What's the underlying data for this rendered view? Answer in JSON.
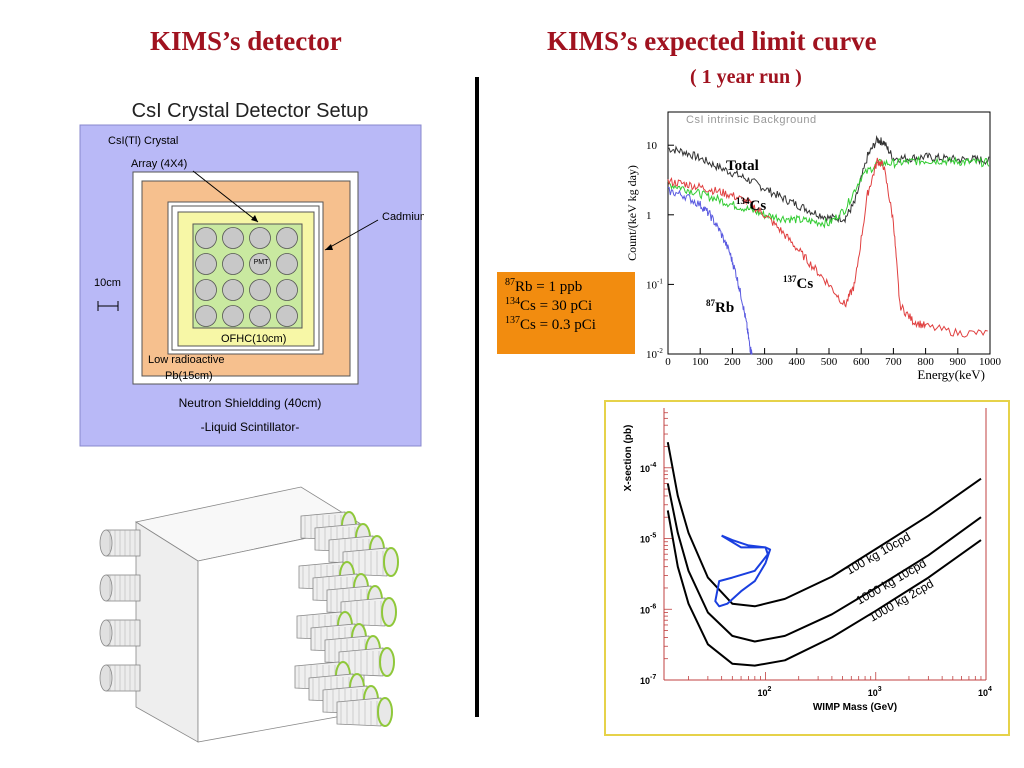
{
  "titles": {
    "left": "KIMS’s detector",
    "right": "KIMS’s expected limit curve",
    "right_sub": "( 1 year run )"
  },
  "setup": {
    "heading": "CsI Crystal Detector Setup",
    "crystal_label": "CsI(Tl) Crystal",
    "array_label": "Array (4X4)",
    "cadmium_label": "Cadmium",
    "scale_label": "10cm",
    "pmt_label": "PMT",
    "ofhc_label": "OFHC(10cm)",
    "pb_label_1": "Low radioactive",
    "pb_label_2": "Pb(15cm)",
    "neutron_label": "Neutron Shieldding (40cm)",
    "scint_label": "-Liquid Scintillator-",
    "colors": {
      "outer": "#b9b9f7",
      "pb": "#f6c08e",
      "ofhc": "#f7f7a6",
      "crystal": "#c9e9a0",
      "cell": "#c8c8c8"
    }
  },
  "isotopes": {
    "rb": {
      "mass": "87",
      "text": "Rb = 1 ppb"
    },
    "cs134": {
      "mass": "134",
      "text": "Cs = 30 pCi"
    },
    "cs137": {
      "mass": "137",
      "text": "Cs = 0.3 pCi"
    },
    "box_color": "#f28c0f"
  },
  "chart_data": [
    {
      "type": "line",
      "title": "CsI intrinsic Background",
      "xlabel": "Energy(keV)",
      "ylabel": "Count/(keV kg day)",
      "xlim": [
        0,
        1000
      ],
      "ylim": [
        0.01,
        30
      ],
      "yscale": "log",
      "x_ticks": [
        "0",
        "100",
        "200",
        "300",
        "400",
        "500",
        "600",
        "700",
        "800",
        "900",
        "1000"
      ],
      "y_ticks": [
        {
          "base": "10",
          "exp": ""
        },
        {
          "base": "1",
          "exp": ""
        },
        {
          "base": "10",
          "exp": "-1"
        },
        {
          "base": "10",
          "exp": "-2"
        }
      ],
      "annotations": [
        {
          "mass": "",
          "text": "Total"
        },
        {
          "mass": "134",
          "text": "Cs"
        },
        {
          "mass": "137",
          "text": "Cs"
        },
        {
          "mass": "87",
          "text": "Rb"
        }
      ],
      "series": [
        {
          "name": "Total",
          "color": "#333333",
          "x": [
            0,
            50,
            100,
            150,
            200,
            250,
            300,
            350,
            400,
            450,
            500,
            550,
            580,
            620,
            650,
            670,
            700,
            750,
            800,
            850,
            900,
            950,
            1000
          ],
          "y": [
            9,
            8,
            6.5,
            5,
            4,
            3.2,
            2.4,
            1.8,
            1.4,
            1.1,
            0.9,
            0.9,
            1.5,
            7,
            12,
            11,
            6.5,
            6.5,
            6.8,
            6.5,
            6.2,
            6.3,
            6.0
          ]
        },
        {
          "name": "134Cs",
          "color": "#33cc33",
          "x": [
            0,
            50,
            100,
            150,
            200,
            250,
            300,
            350,
            400,
            450,
            500,
            550,
            600,
            650,
            700,
            750,
            800,
            850,
            900,
            950,
            1000
          ],
          "y": [
            2.8,
            2.4,
            2.0,
            1.7,
            1.4,
            1.2,
            1.0,
            0.9,
            0.85,
            0.8,
            0.75,
            1.2,
            3.5,
            5.5,
            5.5,
            5.8,
            6,
            6,
            5.8,
            5.7,
            5.6
          ]
        },
        {
          "name": "137Cs",
          "color": "#e04040",
          "x": [
            0,
            50,
            100,
            150,
            200,
            250,
            300,
            350,
            400,
            450,
            500,
            550,
            580,
            620,
            650,
            670,
            700,
            720,
            760,
            800,
            900,
            1000
          ],
          "y": [
            3,
            2.8,
            2.5,
            2.2,
            1.9,
            1.5,
            1.0,
            0.6,
            0.33,
            0.18,
            0.1,
            0.05,
            0.1,
            2,
            6,
            5,
            0.8,
            0.05,
            0.03,
            0.025,
            0.02,
            0.02
          ]
        },
        {
          "name": "87Rb",
          "color": "#5a5ae0",
          "x": [
            0,
            50,
            100,
            130,
            160,
            190,
            210,
            230,
            245,
            255,
            262
          ],
          "y": [
            2.2,
            1.9,
            1.4,
            1.0,
            0.6,
            0.3,
            0.15,
            0.06,
            0.025,
            0.012,
            0.01
          ]
        }
      ]
    },
    {
      "type": "line",
      "xlabel": "WIMP Mass (GeV)",
      "ylabel": "X-section (pb)",
      "xscale": "log",
      "yscale": "log",
      "xlim": [
        10,
        10000
      ],
      "ylim": [
        1e-07,
        0.001
      ],
      "x_ticks": [
        {
          "base": "10",
          "exp": "2"
        },
        {
          "base": "10",
          "exp": "3"
        },
        {
          "base": "10",
          "exp": "4"
        }
      ],
      "y_ticks": [
        {
          "base": "10",
          "exp": "-4"
        },
        {
          "base": "10",
          "exp": "-5"
        },
        {
          "base": "10",
          "exp": "-6"
        },
        {
          "base": "10",
          "exp": "-7"
        }
      ],
      "series": [
        {
          "name": "100 kg 10cpd",
          "color": "#000000",
          "x": [
            13,
            16,
            20,
            30,
            50,
            80,
            150,
            400,
            1000,
            3000,
            9000
          ],
          "y": [
            0.00023,
            4e-05,
            1.2e-05,
            2.8e-06,
            1.2e-06,
            1.1e-06,
            1.4e-06,
            2.9e-06,
            7.1e-06,
            2.1e-05,
            7e-05
          ]
        },
        {
          "name": "1000 kg 10cpd",
          "color": "#000000",
          "x": [
            13,
            16,
            20,
            30,
            50,
            80,
            150,
            400,
            1000,
            3000,
            9000
          ],
          "y": [
            6e-05,
            1.2e-05,
            3.5e-06,
            9e-07,
            4.2e-07,
            3.5e-07,
            4.2e-07,
            8.5e-07,
            2e-06,
            5.8e-06,
            2e-05
          ]
        },
        {
          "name": "1000 kg 2cpd",
          "color": "#000000",
          "x": [
            13,
            16,
            20,
            30,
            50,
            80,
            150,
            400,
            1000,
            3000,
            9000
          ],
          "y": [
            2.5e-05,
            4e-06,
            1.2e-06,
            3.2e-07,
            1.7e-07,
            1.6e-07,
            1.9e-07,
            4e-07,
            9.5e-07,
            2.8e-06,
            9.5e-06
          ]
        },
        {
          "name": "",
          "color": "#1a3fe0",
          "x": [
            40,
            60,
            100,
            110,
            100,
            80,
            60,
            45,
            38,
            35,
            38,
            50,
            80,
            105,
            100,
            70,
            50,
            40
          ],
          "y": [
            1.1e-05,
            7.5e-06,
            7.5e-06,
            7e-06,
            4.5e-06,
            2.5e-06,
            1.8e-06,
            1.2e-06,
            1.1e-06,
            1.3e-06,
            2.5e-06,
            2.8e-06,
            3.5e-06,
            6e-06,
            7.5e-06,
            8e-06,
            9.5e-06,
            1.1e-05
          ]
        }
      ]
    }
  ]
}
